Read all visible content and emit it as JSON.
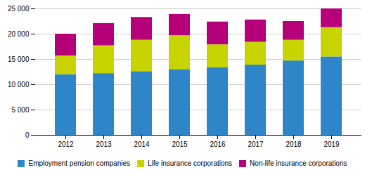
{
  "chart_data": {
    "type": "bar",
    "stacked": true,
    "categories": [
      "2012",
      "2013",
      "2014",
      "2015",
      "2016",
      "2017",
      "2018",
      "2019"
    ],
    "series": [
      {
        "name": "Employment pension companies",
        "color": "#2e86c8",
        "values": [
          12000,
          12200,
          12600,
          13000,
          13400,
          13900,
          14700,
          15500
        ]
      },
      {
        "name": "Life insurance corporations",
        "color": "#c8d400",
        "values": [
          3700,
          5500,
          6200,
          6700,
          4500,
          4500,
          4100,
          5800
        ]
      },
      {
        "name": "Non-life insurance corporations",
        "color": "#b5007a",
        "values": [
          4300,
          4400,
          4500,
          4200,
          4500,
          4400,
          3700,
          3700
        ]
      }
    ],
    "ylim": [
      0,
      25000
    ],
    "yticks": [
      0,
      {
        "value": 5000,
        "label": "5 000"
      },
      {
        "value": 10000,
        "label": "10 000"
      },
      {
        "value": 15000,
        "label": "15 000"
      },
      {
        "value": 20000,
        "label": "20 000"
      },
      {
        "value": 25000,
        "label": "25 000"
      }
    ],
    "grid": true,
    "legend": "bottom"
  }
}
